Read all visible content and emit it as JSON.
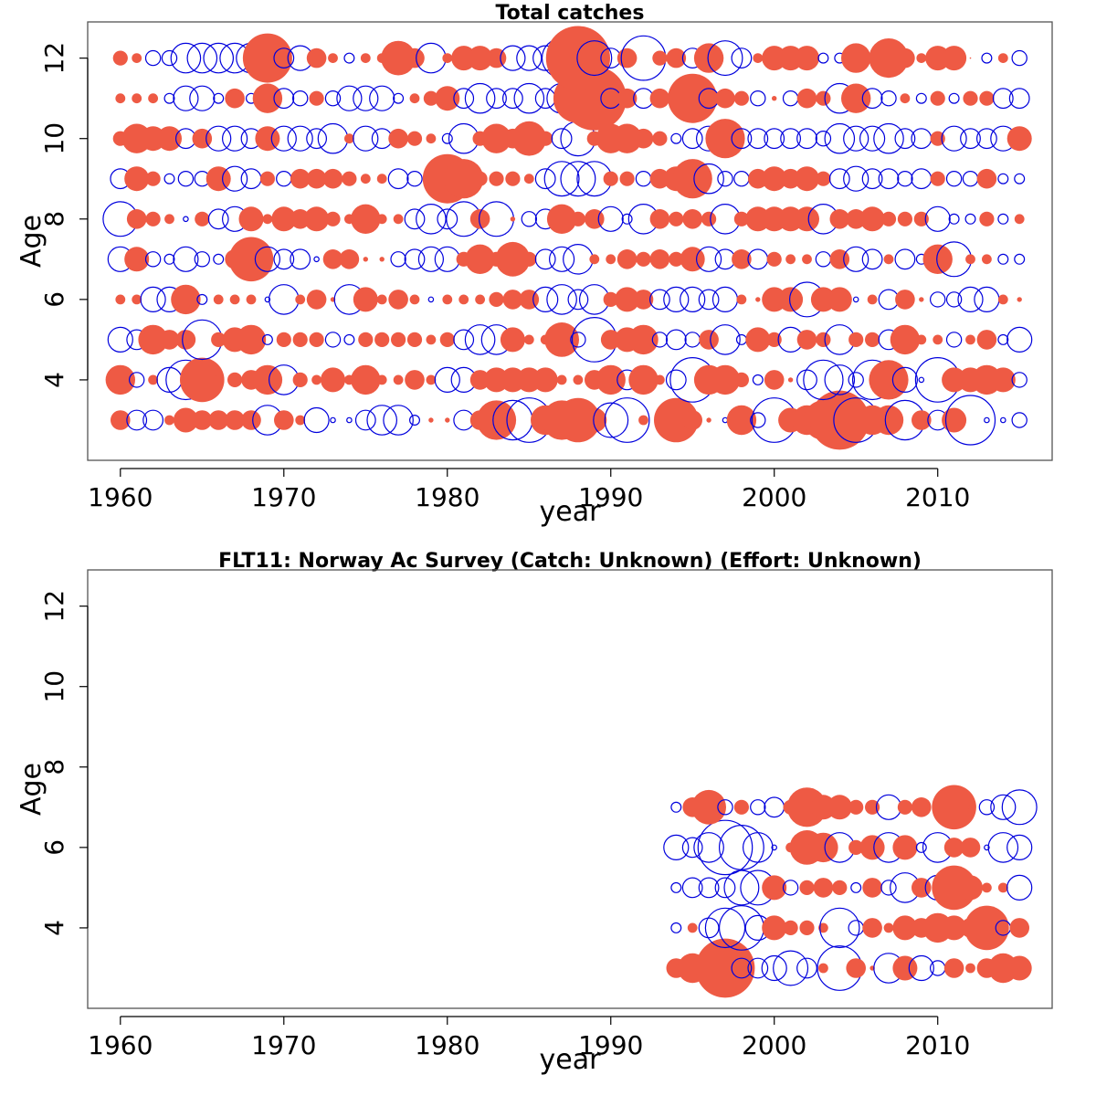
{
  "colors": {
    "positive": "#EE5A44",
    "negative": "#0000DD",
    "frame": "#555555"
  },
  "chart_data": [
    {
      "type": "bubble",
      "title": "Total catches",
      "xlabel": "year",
      "ylabel": "Age",
      "xlim": [
        1958,
        2017
      ],
      "ylim": [
        2,
        12.9
      ],
      "xticks": [
        1960,
        1970,
        1980,
        1990,
        2000,
        2010
      ],
      "xtick_labels": [
        "1960",
        "1970",
        "1980",
        "1990",
        "2000",
        "2010"
      ],
      "yticks": [
        4,
        6,
        8,
        10,
        12
      ],
      "ytick_labels": [
        "4",
        "6",
        "8",
        "10",
        "12"
      ],
      "years": [
        1960,
        1961,
        1962,
        1963,
        1964,
        1965,
        1966,
        1967,
        1968,
        1969,
        1970,
        1971,
        1972,
        1973,
        1974,
        1975,
        1976,
        1977,
        1978,
        1979,
        1980,
        1981,
        1982,
        1983,
        1984,
        1985,
        1986,
        1987,
        1988,
        1989,
        1990,
        1991,
        1992,
        1993,
        1994,
        1995,
        1996,
        1997,
        1998,
        1999,
        2000,
        2001,
        2002,
        2003,
        2004,
        2005,
        2006,
        2007,
        2008,
        2009,
        2010,
        2011,
        2012,
        2013,
        2014,
        2015
      ],
      "ages": [
        3,
        4,
        5,
        6,
        7,
        8,
        9,
        10,
        11,
        12
      ],
      "note_values": "signed residual sizes per age row, one value per year (positive = filled, negative = open)",
      "residuals": [
        [
          0.4,
          -0.4,
          -0.4,
          0.2,
          0.5,
          0.4,
          0.4,
          0.4,
          0.4,
          -0.6,
          0.4,
          0.2,
          -0.5,
          -0.1,
          -0.1,
          -0.4,
          -0.6,
          -0.6,
          -0.2,
          0.1,
          0.1,
          -0.4,
          0.4,
          0.8,
          -0.8,
          -0.9,
          0.6,
          0.8,
          0.9,
          0.5,
          -0.7,
          -0.9,
          0.2,
          -0.2,
          0.9,
          0.4,
          0.1,
          -0.1,
          0.6,
          -0.3,
          -0.9,
          0.5,
          0.6,
          0.8,
          1.2,
          -0.9,
          0.6,
          0.6,
          -0.8,
          0.4,
          -0.4,
          0.5,
          -1.0,
          -0.1,
          -0.1,
          -0.3
        ],
        [
          0.6,
          -0.3,
          0.2,
          -0.5,
          -0.8,
          0.9,
          0.2,
          0.3,
          0.4,
          0.6,
          -0.6,
          0.3,
          0.2,
          0.5,
          0.2,
          0.6,
          0.2,
          0.2,
          0.4,
          0.2,
          -0.5,
          -0.5,
          0.4,
          0.5,
          0.5,
          0.5,
          0.5,
          0.2,
          0.2,
          0.4,
          0.6,
          -0.4,
          0.6,
          0.2,
          -0.4,
          -0.9,
          0.6,
          0.6,
          0.3,
          -0.2,
          0.4,
          0.1,
          -0.4,
          -0.8,
          -0.6,
          -0.3,
          -0.8,
          0.8,
          -0.5,
          -0.1,
          -0.9,
          0.5,
          0.5,
          0.6,
          0.5,
          -0.3
        ],
        [
          -0.5,
          -0.4,
          0.6,
          0.4,
          0.4,
          -0.8,
          0.3,
          0.5,
          0.6,
          -0.2,
          0.3,
          0.3,
          0.3,
          -0.3,
          -0.2,
          0.3,
          0.3,
          0.3,
          0.3,
          0.2,
          0.3,
          -0.4,
          -0.6,
          -0.6,
          0.5,
          0.2,
          0.2,
          0.7,
          -0.3,
          -0.9,
          0.4,
          0.5,
          0.6,
          -0.3,
          -0.4,
          -0.3,
          0.4,
          -0.6,
          -0.2,
          0.5,
          0.3,
          -0.5,
          0.4,
          0.3,
          -0.6,
          0.3,
          0.3,
          -0.4,
          0.6,
          0.2,
          0.2,
          -0.3,
          0.2,
          0.4,
          -0.2,
          -0.5
        ],
        [
          0.2,
          0.2,
          -0.5,
          -0.5,
          0.6,
          -0.2,
          0.2,
          0.2,
          0.2,
          -0.1,
          -0.6,
          0.2,
          0.4,
          0.1,
          -0.6,
          0.5,
          0.2,
          0.4,
          0.2,
          -0.1,
          0.2,
          0.2,
          0.2,
          0.3,
          0.4,
          0.4,
          -0.5,
          -0.6,
          -0.4,
          -0.6,
          0.3,
          0.5,
          0.4,
          -0.4,
          -0.5,
          -0.5,
          -0.4,
          -0.5,
          0.2,
          0.1,
          0.5,
          0.5,
          -0.7,
          0.5,
          0.5,
          -0.1,
          0.2,
          -0.4,
          0.4,
          0.1,
          -0.3,
          -0.3,
          -0.5,
          -0.5,
          0.2,
          0.1
        ],
        [
          -0.5,
          0.5,
          -0.3,
          -0.2,
          -0.5,
          -0.3,
          -0.2,
          0.4,
          0.9,
          -0.5,
          -0.4,
          -0.4,
          -0.1,
          0.4,
          0.4,
          0.1,
          0.1,
          -0.3,
          -0.4,
          -0.5,
          -0.5,
          0.3,
          0.6,
          0.3,
          0.7,
          0.3,
          -0.4,
          -0.5,
          -0.6,
          0.2,
          0.2,
          0.4,
          0.3,
          0.4,
          0.3,
          0.5,
          -0.5,
          -0.4,
          0.4,
          -0.4,
          0.3,
          0.2,
          0.2,
          -0.3,
          0.4,
          -0.5,
          -0.4,
          0.2,
          -0.4,
          -0.2,
          0.6,
          -0.7,
          0.2,
          0.2,
          -0.2,
          -0.2
        ],
        [
          -0.7,
          0.4,
          0.3,
          0.2,
          -0.1,
          0.3,
          -0.4,
          -0.5,
          0.5,
          0.2,
          0.5,
          0.4,
          0.5,
          0.3,
          0.2,
          0.6,
          0.2,
          0.2,
          -0.4,
          -0.6,
          -0.4,
          -0.7,
          0.4,
          -0.7,
          0.1,
          -0.3,
          -0.4,
          0.6,
          0.3,
          0.4,
          -0.5,
          -0.2,
          -0.6,
          0.4,
          0.3,
          0.4,
          0.3,
          -0.6,
          0.3,
          0.5,
          0.5,
          0.5,
          0.5,
          -0.6,
          0.4,
          0.4,
          0.5,
          0.3,
          0.3,
          0.3,
          -0.5,
          -0.2,
          -0.2,
          0.3,
          -0.2,
          0.2
        ],
        [
          -0.4,
          0.5,
          0.3,
          -0.2,
          -0.3,
          -0.3,
          0.5,
          -0.5,
          -0.4,
          0.3,
          -0.3,
          0.4,
          0.4,
          0.4,
          0.3,
          0.2,
          0.2,
          -0.4,
          -0.3,
          0.2,
          1.0,
          0.8,
          0.3,
          0.3,
          0.3,
          0.2,
          -0.4,
          -0.7,
          -0.7,
          -0.7,
          0.3,
          0.3,
          -0.3,
          0.4,
          0.5,
          0.8,
          -0.6,
          -0.3,
          -0.3,
          0.4,
          0.5,
          0.4,
          0.5,
          0.3,
          -0.4,
          -0.5,
          -0.4,
          -0.4,
          -0.3,
          -0.4,
          0.3,
          -0.3,
          -0.3,
          0.4,
          -0.2,
          -0.2
        ],
        [
          0.3,
          0.6,
          0.5,
          0.5,
          -0.4,
          0.4,
          -0.5,
          -0.5,
          -0.4,
          0.5,
          -0.5,
          -0.5,
          -0.4,
          -0.6,
          0.2,
          -0.5,
          -0.4,
          0.4,
          0.3,
          0.2,
          -0.2,
          -0.6,
          0.3,
          0.6,
          0.4,
          0.7,
          0.3,
          -0.4,
          -0.7,
          0.3,
          0.6,
          0.6,
          0.4,
          0.3,
          -0.2,
          -0.4,
          -0.5,
          0.8,
          -0.4,
          -0.4,
          -0.4,
          -0.4,
          -0.4,
          -0.3,
          -0.6,
          -0.5,
          -0.5,
          -0.6,
          -0.4,
          -0.4,
          0.3,
          -0.5,
          -0.4,
          -0.4,
          -0.5,
          0.5
        ],
        [
          0.2,
          0.2,
          0.2,
          -0.2,
          -0.5,
          -0.5,
          -0.2,
          0.4,
          -0.2,
          0.6,
          -0.4,
          -0.3,
          0.3,
          -0.3,
          -0.5,
          -0.5,
          -0.5,
          -0.2,
          0.2,
          0.3,
          0.5,
          -0.4,
          -0.6,
          -0.4,
          -0.4,
          -0.6,
          -0.4,
          -0.6,
          1.0,
          1.3,
          -0.4,
          0.4,
          -0.4,
          0.4,
          0.3,
          1.0,
          -0.4,
          0.4,
          0.3,
          -0.3,
          0.1,
          -0.3,
          0.4,
          0.3,
          -0.6,
          0.6,
          -0.4,
          -0.3,
          0.2,
          -0.2,
          0.3,
          -0.2,
          0.3,
          0.3,
          -0.4,
          -0.4
        ],
        [
          0.3,
          0.2,
          -0.3,
          -0.3,
          -0.6,
          -0.6,
          -0.6,
          -0.6,
          -0.6,
          1.0,
          -0.4,
          -0.5,
          0.4,
          0.2,
          -0.2,
          0.2,
          0.2,
          0.7,
          0.4,
          -0.6,
          0.2,
          0.5,
          0.5,
          0.4,
          -0.5,
          -0.5,
          -0.5,
          -0.8,
          1.3,
          -0.7,
          -0.4,
          0.4,
          -0.9,
          0.3,
          0.4,
          -0.4,
          0.6,
          -0.7,
          -0.4,
          0.2,
          0.5,
          0.5,
          0.5,
          -0.2,
          -0.2,
          0.6,
          0.2,
          0.8,
          0.4,
          0.2,
          0.5,
          0.5,
          0.0,
          -0.2,
          0.2,
          -0.3
        ]
      ]
    },
    {
      "type": "bubble",
      "title": "FLT11: Norway Ac Survey (Catch: Unknown) (Effort: Unknown)",
      "xlabel": "year",
      "ylabel": "Age",
      "xlim": [
        1958,
        2017
      ],
      "ylim": [
        2,
        12.9
      ],
      "xticks": [
        1960,
        1970,
        1980,
        1990,
        2000,
        2010
      ],
      "xtick_labels": [
        "1960",
        "1970",
        "1980",
        "1990",
        "2000",
        "2010"
      ],
      "yticks": [
        4,
        6,
        8,
        10,
        12
      ],
      "ytick_labels": [
        "4",
        "6",
        "8",
        "10",
        "12"
      ],
      "years": [
        1994,
        1995,
        1996,
        1997,
        1998,
        1999,
        2000,
        2001,
        2002,
        2003,
        2004,
        2005,
        2006,
        2007,
        2008,
        2009,
        2010,
        2011,
        2012,
        2013,
        2014,
        2015
      ],
      "ages": [
        3,
        4,
        5,
        6,
        7
      ],
      "note_values": "signed residual sizes per age row, one value per year (positive = filled, negative = open)",
      "residuals": [
        [
          0.4,
          0.6,
          -0.4,
          1.2,
          -0.4,
          -0.4,
          -0.5,
          -0.7,
          -0.4,
          0.2,
          -0.9,
          0.4,
          0.1,
          -0.6,
          0.5,
          -0.5,
          -0.3,
          0.4,
          0.2,
          0.4,
          0.6,
          0.5
        ],
        [
          -0.2,
          0.2,
          -0.4,
          -0.8,
          -0.9,
          -0.5,
          0.5,
          0.3,
          0.3,
          0.2,
          -0.8,
          -0.3,
          0.4,
          0.2,
          0.5,
          0.4,
          0.6,
          0.5,
          0.4,
          0.9,
          -0.3,
          0.4
        ],
        [
          -0.2,
          -0.4,
          -0.4,
          -0.4,
          -0.7,
          -0.7,
          0.5,
          -0.3,
          0.3,
          0.4,
          0.3,
          -0.2,
          0.4,
          -0.3,
          -0.6,
          0.4,
          -0.5,
          0.9,
          0.5,
          0.2,
          0.2,
          -0.5
        ],
        [
          -0.5,
          -0.4,
          -0.6,
          -1.1,
          -0.9,
          -0.6,
          -0.1,
          0.2,
          0.7,
          0.6,
          -0.6,
          0.3,
          0.5,
          -0.6,
          0.5,
          -0.2,
          -0.6,
          0.4,
          0.4,
          -0.1,
          -0.6,
          -0.5
        ],
        [
          -0.2,
          0.4,
          0.7,
          -0.3,
          0.3,
          -0.3,
          -0.4,
          0.3,
          0.8,
          0.5,
          0.5,
          0.3,
          0.3,
          -0.5,
          0.3,
          0.4,
          -0.1,
          0.9,
          0.1,
          -0.3,
          -0.5,
          -0.7
        ]
      ]
    }
  ]
}
